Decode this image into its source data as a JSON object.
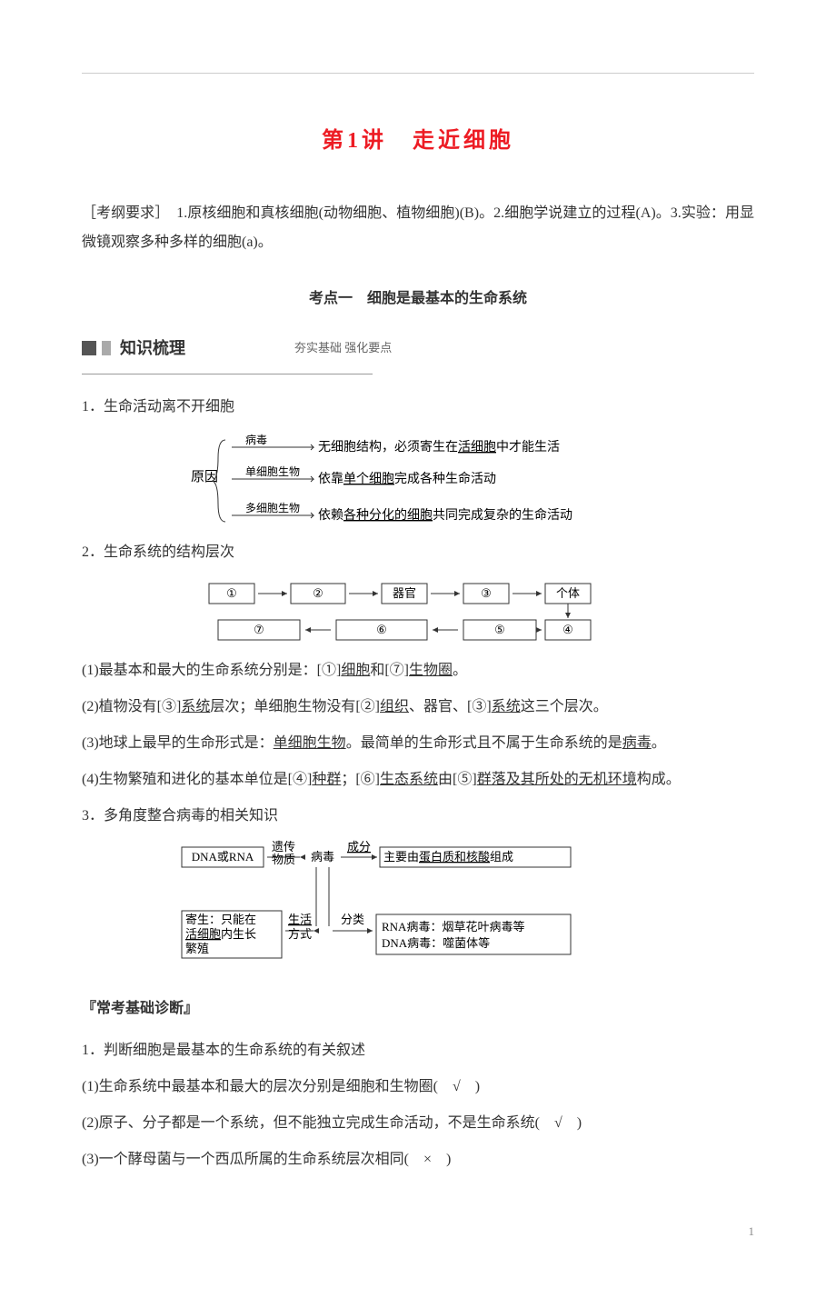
{
  "title_color": "#ed1c24",
  "title": "第1讲　走近细胞",
  "kaogang": "［考纲要求］　1.原核细胞和真核细胞(动物细胞、植物细胞)(B)。2.细胞学说建立的过程(A)。3.实验：用显微镜观察多种多样的细胞(a)。",
  "kaodian1": "考点一　细胞是最基本的生命系统",
  "zsl_label": "知识梳理",
  "zsl_sub": "夯实基础  强化要点",
  "h1": "1．生命活动离不开细胞",
  "d1": {
    "root": "原因",
    "rows": [
      {
        "top": "病毒",
        "right_pre": "无细胞结构，必须寄生在",
        "u": "活细胞",
        "right_post": "中才能生活"
      },
      {
        "top": "单细胞生物",
        "right_pre": "依靠",
        "u": "单个细胞",
        "right_post": "完成各种生命活动"
      },
      {
        "top": "多细胞生物",
        "right_pre": "依赖",
        "u": "各种分化的细胞",
        "right_post": "共同完成复杂的生命活动"
      }
    ]
  },
  "h2": "2．生命系统的结构层次",
  "d2": {
    "top": [
      "①",
      "②",
      "器官",
      "③",
      "个体"
    ],
    "bot": [
      "⑦",
      "⑥",
      "⑤",
      "④"
    ]
  },
  "p1": "(1)最基本和最大的生命系统分别是：[①]细胞和[⑦]生物圈。",
  "p1_u": [
    "细胞",
    "生物圈"
  ],
  "p2": "(2)植物没有[③]系统层次；单细胞生物没有[②]组织、器官、[③]系统这三个层次。",
  "p2_u": [
    "系统",
    "组织",
    "系统"
  ],
  "p3a": "(3)地球上最早的生命形式是：",
  "p3b": "。最简单的生命形式且不属于生命系统的是",
  "p3c": "。",
  "p3_u1": "单细胞生物",
  "p3_u2": "病毒",
  "p4a": "(4)生物繁殖和进化的基本单位是[④]",
  "p4b": "；[⑥]",
  "p4c": "由[⑤]",
  "p4d": "构成。",
  "p4_u1": "种群",
  "p4_mid": "生态系统",
  "p4_u2": "群落及其所处的无机环境",
  "h3": "3．多角度整合病毒的相关知识",
  "d3": {
    "tl": "DNA或RNA",
    "tl_lab": "遗传物质",
    "mid": "病毒",
    "tr_lab": "成分",
    "tr_pre": "主要由",
    "tr_u": "蛋白质和核酸",
    "tr_post": "组成",
    "bl1": "寄生：只能在",
    "bl2u": "活细胞",
    "bl2b": "内生长繁殖",
    "bl_lab_u": "生活方式",
    "br_lab": "分类",
    "br1": "RNA病毒：烟草花叶病毒等",
    "br2": "DNA病毒：噬菌体等"
  },
  "ckjczd": "『常考基础诊断』",
  "q1": "1．判断细胞是最基本的生命系统的有关叙述",
  "q1a": "(1)生命系统中最基本和最大的层次分别是细胞和生物圈(　√　)",
  "q1b": "(2)原子、分子都是一个系统，但不能独立完成生命活动，不是生命系统(　√　)",
  "q1c": "(3)一个酵母菌与一个西瓜所属的生命系统层次相同(　×　)",
  "pagenum": "1"
}
